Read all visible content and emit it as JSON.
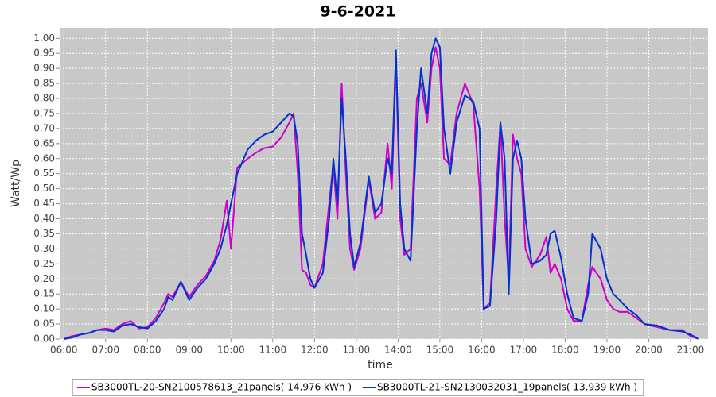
{
  "chart_data": {
    "type": "line",
    "title": "9-6-2021",
    "xlabel": "time",
    "ylabel": "Watt/Wp",
    "x": [
      6.0,
      6.2,
      6.4,
      6.6,
      6.8,
      7.0,
      7.2,
      7.4,
      7.6,
      7.8,
      8.0,
      8.2,
      8.4,
      8.5,
      8.6,
      8.8,
      9.0,
      9.2,
      9.4,
      9.6,
      9.75,
      9.9,
      10.0,
      10.15,
      10.4,
      10.6,
      10.8,
      11.0,
      11.2,
      11.4,
      11.5,
      11.6,
      11.7,
      11.8,
      11.9,
      12.0,
      12.2,
      12.35,
      12.45,
      12.55,
      12.65,
      12.75,
      12.85,
      12.95,
      13.1,
      13.3,
      13.45,
      13.6,
      13.75,
      13.85,
      13.95,
      14.05,
      14.15,
      14.3,
      14.45,
      14.55,
      14.7,
      14.8,
      14.9,
      15.0,
      15.1,
      15.25,
      15.4,
      15.6,
      15.8,
      15.95,
      16.05,
      16.2,
      16.35,
      16.45,
      16.55,
      16.65,
      16.75,
      16.85,
      16.95,
      17.05,
      17.2,
      17.4,
      17.55,
      17.65,
      17.75,
      17.9,
      18.05,
      18.2,
      18.4,
      18.55,
      18.65,
      18.85,
      19.0,
      19.15,
      19.3,
      19.5,
      19.7,
      19.9,
      20.2,
      20.5,
      20.8,
      21.0,
      21.2
    ],
    "series": [
      {
        "name": "SB3000TL-20-SN2100578613_21panels( 14.976 kWh )",
        "color": "#cc00cc",
        "values": [
          0,
          0.01,
          0.015,
          0.02,
          0.03,
          0.035,
          0.03,
          0.05,
          0.06,
          0.035,
          0.04,
          0.07,
          0.12,
          0.15,
          0.14,
          0.19,
          0.14,
          0.18,
          0.21,
          0.26,
          0.33,
          0.46,
          0.3,
          0.57,
          0.6,
          0.62,
          0.635,
          0.64,
          0.67,
          0.72,
          0.75,
          0.55,
          0.23,
          0.22,
          0.18,
          0.17,
          0.25,
          0.45,
          0.58,
          0.4,
          0.85,
          0.55,
          0.3,
          0.23,
          0.3,
          0.53,
          0.4,
          0.42,
          0.65,
          0.5,
          0.93,
          0.4,
          0.28,
          0.3,
          0.8,
          0.85,
          0.72,
          0.9,
          0.97,
          0.9,
          0.6,
          0.58,
          0.75,
          0.85,
          0.78,
          0.5,
          0.1,
          0.12,
          0.5,
          0.72,
          0.4,
          0.2,
          0.68,
          0.6,
          0.55,
          0.3,
          0.24,
          0.28,
          0.34,
          0.22,
          0.25,
          0.2,
          0.1,
          0.06,
          0.06,
          0.18,
          0.24,
          0.2,
          0.13,
          0.1,
          0.09,
          0.09,
          0.07,
          0.05,
          0.04,
          0.03,
          0.03,
          0.01,
          0
        ]
      },
      {
        "name": "SB3000TL-21-SN2130032031_19panels( 13.939 kWh )",
        "color": "#0033cc",
        "values": [
          0,
          0.005,
          0.015,
          0.02,
          0.03,
          0.03,
          0.025,
          0.045,
          0.05,
          0.04,
          0.035,
          0.06,
          0.1,
          0.14,
          0.13,
          0.19,
          0.13,
          0.17,
          0.2,
          0.25,
          0.3,
          0.38,
          0.45,
          0.55,
          0.63,
          0.66,
          0.68,
          0.69,
          0.72,
          0.75,
          0.74,
          0.65,
          0.35,
          0.28,
          0.2,
          0.17,
          0.22,
          0.4,
          0.6,
          0.45,
          0.8,
          0.6,
          0.35,
          0.24,
          0.32,
          0.54,
          0.42,
          0.45,
          0.6,
          0.55,
          0.96,
          0.45,
          0.3,
          0.26,
          0.7,
          0.9,
          0.75,
          0.95,
          1.0,
          0.97,
          0.7,
          0.55,
          0.72,
          0.81,
          0.79,
          0.7,
          0.1,
          0.11,
          0.4,
          0.72,
          0.6,
          0.15,
          0.6,
          0.66,
          0.6,
          0.4,
          0.25,
          0.26,
          0.28,
          0.35,
          0.36,
          0.27,
          0.15,
          0.07,
          0.06,
          0.15,
          0.35,
          0.3,
          0.2,
          0.15,
          0.13,
          0.1,
          0.08,
          0.05,
          0.045,
          0.03,
          0.025,
          0.015,
          0
        ]
      }
    ],
    "xlim": [
      5.9,
      21.42
    ],
    "xticks": [
      {
        "value": 6,
        "label": "06:00"
      },
      {
        "value": 7,
        "label": "07:00"
      },
      {
        "value": 8,
        "label": "08:00"
      },
      {
        "value": 9,
        "label": "09:00"
      },
      {
        "value": 10,
        "label": "10:00"
      },
      {
        "value": 11,
        "label": "11:00"
      },
      {
        "value": 12,
        "label": "12:00"
      },
      {
        "value": 13,
        "label": "13:00"
      },
      {
        "value": 14,
        "label": "14:00"
      },
      {
        "value": 15,
        "label": "15:00"
      },
      {
        "value": 16,
        "label": "16:00"
      },
      {
        "value": 17,
        "label": "17:00"
      },
      {
        "value": 18,
        "label": "18:00"
      },
      {
        "value": 19,
        "label": "19:00"
      },
      {
        "value": 20,
        "label": "20:00"
      },
      {
        "value": 21,
        "label": "21:00"
      }
    ],
    "ylim": [
      0,
      1.035
    ],
    "yticks": [
      {
        "value": 0,
        "label": "0.00"
      },
      0.05,
      {
        "value": 0.1,
        "label": "0.10"
      },
      0.15,
      {
        "value": 0.2,
        "label": "0.20"
      },
      0.25,
      {
        "value": 0.3,
        "label": "0.30"
      },
      0.35,
      {
        "value": 0.4,
        "label": "0.40"
      },
      0.45,
      {
        "value": 0.5,
        "label": "0.50"
      },
      0.55,
      {
        "value": 0.6,
        "label": "0.60"
      },
      0.65,
      {
        "value": 0.7,
        "label": "0.70"
      },
      0.75,
      {
        "value": 0.8,
        "label": "0.80"
      },
      0.85,
      {
        "value": 0.9,
        "label": "0.90"
      },
      0.95,
      {
        "value": 1,
        "label": "1.00"
      }
    ],
    "grid": true,
    "legend": "bottom"
  }
}
